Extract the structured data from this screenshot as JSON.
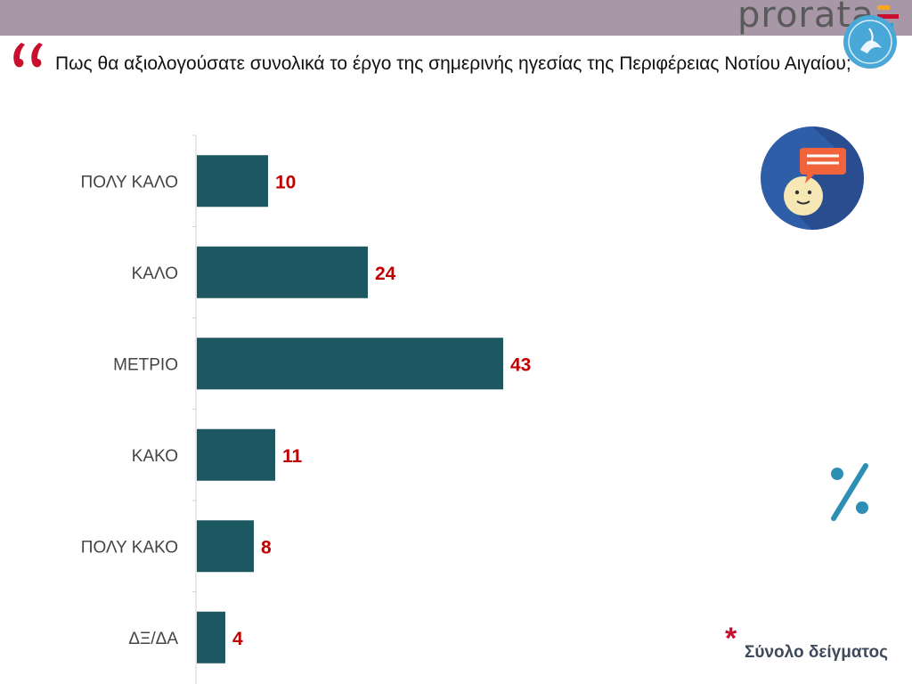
{
  "header": {
    "brand": "prorata",
    "brand_bar_colors": [
      "#f5a623",
      "#c8102e",
      "#2e9fd1"
    ]
  },
  "question": "Πως θα αξιολογούσατε συνολικά το έργο της σημερινής ηγεσίας της Περιφέρειας Νοτίου Αιγαίου;",
  "icons": {
    "quote": "quote-icon",
    "emblem": "region-emblem-icon",
    "speech": "person-speech-icon",
    "percent": "percent-icon"
  },
  "footnote": {
    "asterisk": "*",
    "text": "Σύνολο δείγματος"
  },
  "chart_data": {
    "type": "bar",
    "orientation": "horizontal",
    "categories": [
      "ΠΟΛΥ ΚΑΛΟ",
      "ΚΑΛΟ",
      "ΜΕΤΡΙΟ",
      "ΚΑΚΟ",
      "ΠΟΛΥ ΚΑΚΟ",
      "ΔΞ/ΔΑ"
    ],
    "values": [
      10,
      24,
      43,
      11,
      8,
      4
    ],
    "title": "",
    "xlabel": "",
    "ylabel": "",
    "xlim": [
      0,
      60
    ],
    "grid": false,
    "bar_color": "#1d5761",
    "label_color": "#c00000"
  }
}
